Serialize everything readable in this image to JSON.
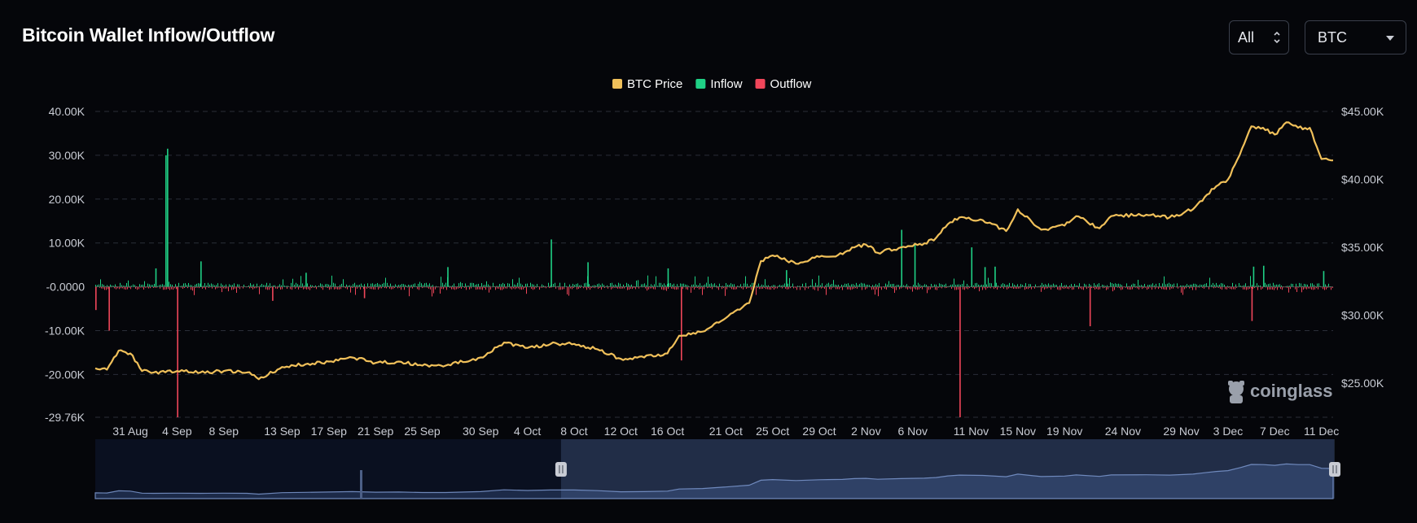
{
  "header": {
    "title": "Bitcoin Wallet Inflow/Outflow",
    "range_select": "All",
    "asset_select": "BTC"
  },
  "watermark": "coinglass",
  "colors": {
    "price": "#f0c05a",
    "inflow": "#1fd085",
    "outflow": "#f0465a",
    "grid": "#2a2e38",
    "navigator_fill": "#1c2a48",
    "navigator_line": "#6d86b8"
  },
  "chart_data": {
    "type": "bar",
    "title": "",
    "legend": [
      {
        "name": "BTC Price",
        "color": "#f0c05a"
      },
      {
        "name": "Inflow",
        "color": "#1fd085"
      },
      {
        "name": "Outflow",
        "color": "#f0465a"
      }
    ],
    "legend_position": "top-center",
    "y_left": {
      "min": -29760,
      "max": 40000,
      "ticks": [
        40000,
        30000,
        20000,
        10000,
        0,
        -10000,
        -20000,
        -29760
      ],
      "tick_labels": [
        "40.00K",
        "30.00K",
        "20.00K",
        "10.00K",
        "-0.0000",
        "-10.00K",
        "-20.00K",
        "-29.76K"
      ]
    },
    "y_right": {
      "min": 22500,
      "max": 45000,
      "ticks": [
        45000,
        40000,
        35000,
        30000,
        25000
      ],
      "tick_labels": [
        "$45.00K",
        "$40.00K",
        "$35.00K",
        "$30.00K",
        "$25.00K"
      ]
    },
    "x_axis": {
      "start": "2023-08-28",
      "end": "2023-12-12",
      "tick_labels": [
        "31 Aug",
        "4 Sep",
        "8 Sep",
        "13 Sep",
        "17 Sep",
        "21 Sep",
        "25 Sep",
        "30 Sep",
        "4 Oct",
        "8 Oct",
        "12 Oct",
        "16 Oct",
        "21 Oct",
        "25 Oct",
        "29 Oct",
        "2 Nov",
        "6 Nov",
        "11 Nov",
        "15 Nov",
        "19 Nov",
        "24 Nov",
        "29 Nov",
        "3 Dec",
        "7 Dec",
        "11 Dec"
      ],
      "tick_dates": [
        "2023-08-31",
        "2023-09-04",
        "2023-09-08",
        "2023-09-13",
        "2023-09-17",
        "2023-09-21",
        "2023-09-25",
        "2023-09-30",
        "2023-10-04",
        "2023-10-08",
        "2023-10-12",
        "2023-10-16",
        "2023-10-21",
        "2023-10-25",
        "2023-10-29",
        "2023-11-02",
        "2023-11-06",
        "2023-11-11",
        "2023-11-15",
        "2023-11-19",
        "2023-11-24",
        "2023-11-29",
        "2023-12-03",
        "2023-12-07",
        "2023-12-11"
      ]
    },
    "grid": true,
    "series": [
      {
        "name": "BTC Price",
        "axis": "right",
        "type": "line",
        "points": [
          [
            "2023-08-28",
            26100
          ],
          [
            "2023-08-29",
            26000
          ],
          [
            "2023-08-30",
            27400
          ],
          [
            "2023-08-31",
            27200
          ],
          [
            "2023-09-01",
            25900
          ],
          [
            "2023-09-02",
            25800
          ],
          [
            "2023-09-04",
            25900
          ],
          [
            "2023-09-06",
            25800
          ],
          [
            "2023-09-08",
            25900
          ],
          [
            "2023-09-10",
            25800
          ],
          [
            "2023-09-11",
            25300
          ],
          [
            "2023-09-13",
            26200
          ],
          [
            "2023-09-15",
            26400
          ],
          [
            "2023-09-17",
            26600
          ],
          [
            "2023-09-19",
            26900
          ],
          [
            "2023-09-21",
            26500
          ],
          [
            "2023-09-23",
            26600
          ],
          [
            "2023-09-25",
            26300
          ],
          [
            "2023-09-27",
            26300
          ],
          [
            "2023-09-30",
            26900
          ],
          [
            "2023-10-02",
            28000
          ],
          [
            "2023-10-04",
            27600
          ],
          [
            "2023-10-06",
            27900
          ],
          [
            "2023-10-08",
            27900
          ],
          [
            "2023-10-10",
            27500
          ],
          [
            "2023-10-12",
            26800
          ],
          [
            "2023-10-14",
            26900
          ],
          [
            "2023-10-16",
            27200
          ],
          [
            "2023-10-17",
            28500
          ],
          [
            "2023-10-19",
            28800
          ],
          [
            "2023-10-21",
            29800
          ],
          [
            "2023-10-23",
            30900
          ],
          [
            "2023-10-24",
            34000
          ],
          [
            "2023-10-25",
            34400
          ],
          [
            "2023-10-27",
            33800
          ],
          [
            "2023-10-29",
            34300
          ],
          [
            "2023-10-31",
            34500
          ],
          [
            "2023-11-01",
            35000
          ],
          [
            "2023-11-02",
            35200
          ],
          [
            "2023-11-03",
            34600
          ],
          [
            "2023-11-05",
            35000
          ],
          [
            "2023-11-07",
            35300
          ],
          [
            "2023-11-08",
            35700
          ],
          [
            "2023-11-09",
            36700
          ],
          [
            "2023-11-10",
            37200
          ],
          [
            "2023-11-12",
            37000
          ],
          [
            "2023-11-14",
            36200
          ],
          [
            "2023-11-15",
            37800
          ],
          [
            "2023-11-17",
            36300
          ],
          [
            "2023-11-19",
            36600
          ],
          [
            "2023-11-20",
            37300
          ],
          [
            "2023-11-22",
            36400
          ],
          [
            "2023-11-23",
            37300
          ],
          [
            "2023-11-26",
            37400
          ],
          [
            "2023-11-28",
            37200
          ],
          [
            "2023-11-30",
            37800
          ],
          [
            "2023-12-01",
            38700
          ],
          [
            "2023-12-02",
            39500
          ],
          [
            "2023-12-03",
            40000
          ],
          [
            "2023-12-04",
            41800
          ],
          [
            "2023-12-05",
            43900
          ],
          [
            "2023-12-06",
            43800
          ],
          [
            "2023-12-07",
            43300
          ],
          [
            "2023-12-08",
            44200
          ],
          [
            "2023-12-09",
            43800
          ],
          [
            "2023-12-10",
            43800
          ],
          [
            "2023-12-11",
            41500
          ],
          [
            "2023-12-12",
            41400
          ]
        ]
      },
      {
        "name": "Inflow",
        "axis": "left",
        "type": "bar",
        "points": [
          [
            "2023-09-03",
            30000
          ],
          [
            "2023-09-03",
            31500
          ],
          [
            "2023-09-06",
            5800
          ],
          [
            "2023-09-02",
            4200
          ],
          [
            "2023-09-15",
            3200
          ],
          [
            "2023-09-27",
            4500
          ],
          [
            "2023-10-06",
            10800
          ],
          [
            "2023-10-09",
            5600
          ],
          [
            "2023-10-16",
            4200
          ],
          [
            "2023-10-26",
            3800
          ],
          [
            "2023-11-05",
            13000
          ],
          [
            "2023-11-06",
            10000
          ],
          [
            "2023-11-11",
            9000
          ],
          [
            "2023-11-12",
            4500
          ],
          [
            "2023-11-13",
            4600
          ],
          [
            "2023-12-05",
            4600
          ],
          [
            "2023-12-06",
            4800
          ],
          [
            "2023-12-11",
            3600
          ]
        ]
      },
      {
        "name": "Outflow",
        "axis": "left",
        "type": "bar",
        "points": [
          [
            "2023-08-28",
            -5300
          ],
          [
            "2023-08-29",
            -10000
          ],
          [
            "2023-09-04",
            -29760
          ],
          [
            "2023-09-12",
            -3200
          ],
          [
            "2023-09-20",
            -2600
          ],
          [
            "2023-10-17",
            -16800
          ],
          [
            "2023-11-10",
            -29760
          ],
          [
            "2023-11-21",
            -9000
          ],
          [
            "2023-12-05",
            -7800
          ]
        ]
      }
    ],
    "navigator": {
      "window_start": "2023-10-08",
      "window_end": "2023-12-12"
    }
  }
}
